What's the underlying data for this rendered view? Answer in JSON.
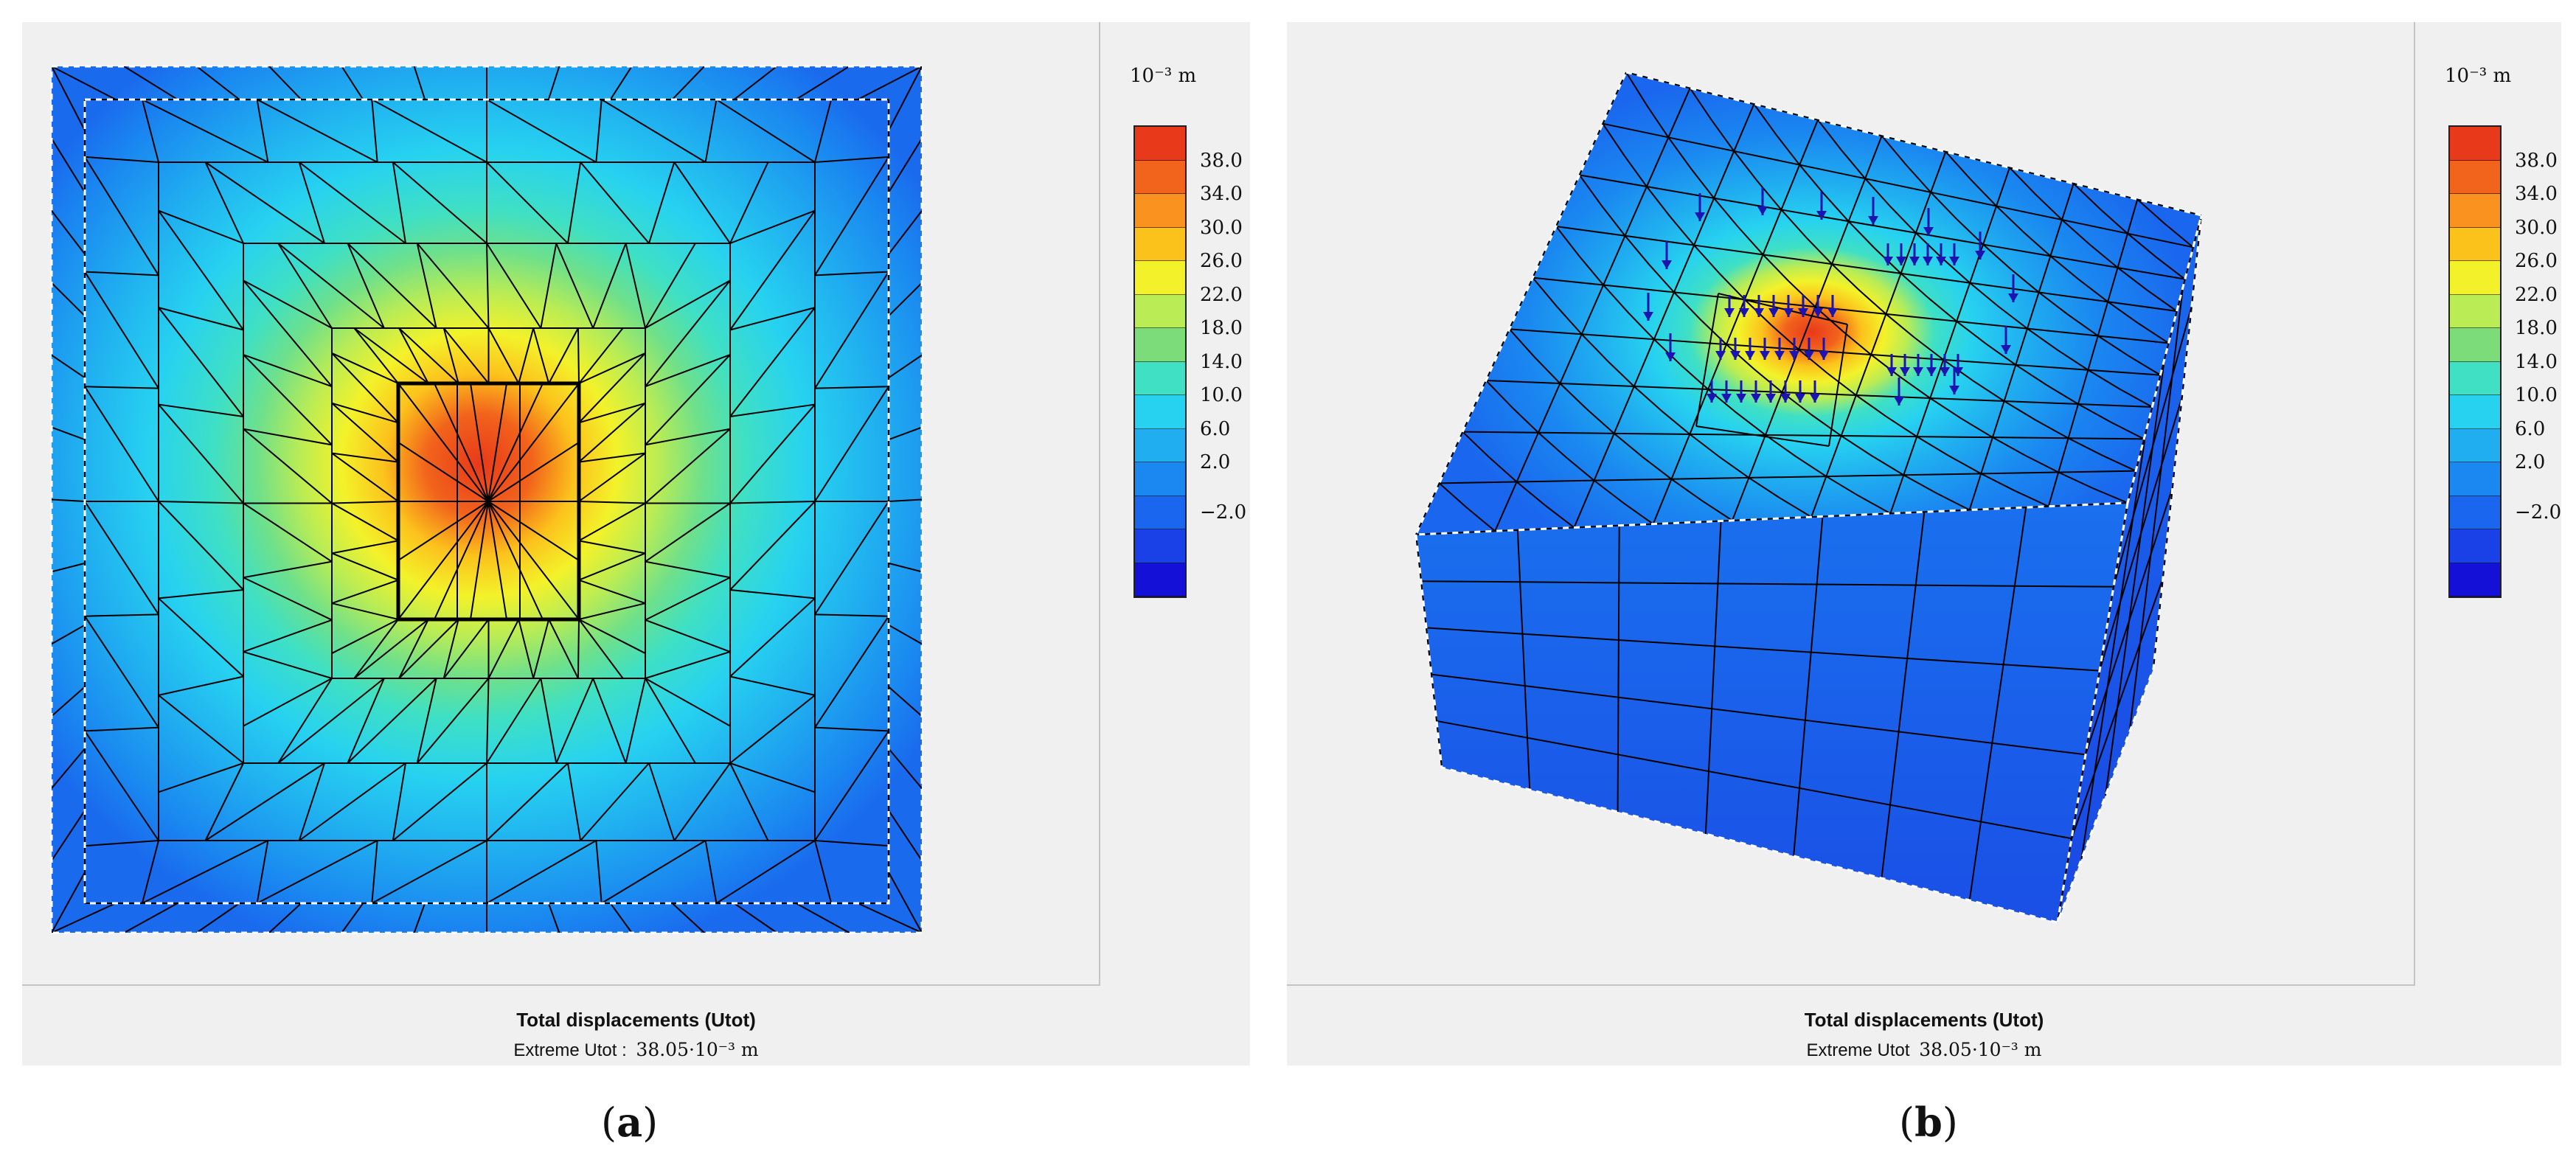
{
  "legend": {
    "unit": "10⁻³ m",
    "ticks": [
      "38.0",
      "34.0",
      "30.0",
      "26.0",
      "22.0",
      "18.0",
      "14.0",
      "10.0",
      "6.0",
      "2.0",
      "−2.0"
    ],
    "colors": [
      "#e8391a",
      "#f2631c",
      "#f9921e",
      "#fcc21c",
      "#f3f22a",
      "#b9ec55",
      "#7ddc7a",
      "#3fe0c4",
      "#27d2f0",
      "#20aef0",
      "#1a88f0",
      "#1a66ee",
      "#1a40e8",
      "#1410d8"
    ]
  },
  "panel_a": {
    "caption_title": "Total displacements (Utot)",
    "caption_label": "Extreme Utot :",
    "caption_value": "38.05·10⁻³ m",
    "sublabel_open": "(",
    "sublabel_letter": "a",
    "sublabel_close": ")"
  },
  "panel_b": {
    "caption_title": "Total displacements (Utot)",
    "caption_label": "Extreme Utot",
    "caption_value": "38.05·10⁻³ m",
    "sublabel_open": "(",
    "sublabel_letter": "b",
    "sublabel_close": ")"
  }
}
